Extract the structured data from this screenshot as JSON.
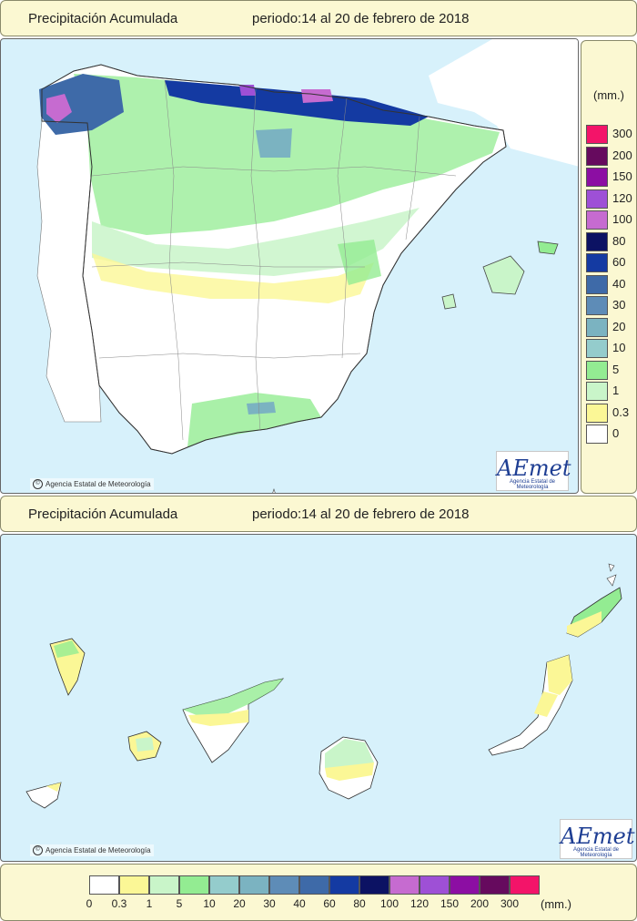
{
  "header_top": {
    "title": "Precipitación Acumulada",
    "period": "periodo:14 al 20 de febrero de 2018"
  },
  "header_bottom": {
    "title": "Precipitación Acumulada",
    "period": "periodo:14 al 20 de febrero de 2018"
  },
  "map_peninsula": {
    "credit": "Agencia Estatal de Meteorología",
    "logo_text": "AEmet",
    "logo_subtext": "Agencia Estatal de Meteorología"
  },
  "map_canarias": {
    "credit": "Agencia Estatal de Meteorología",
    "logo_text": "AEmet",
    "logo_subtext": "Agencia Estatal de Meteorología"
  },
  "legend": {
    "unit": "(mm.)",
    "classes": [
      {
        "label": "0",
        "color": "#ffffff"
      },
      {
        "label": "0.3",
        "color": "#fbf796"
      },
      {
        "label": "1",
        "color": "#c9f5c9"
      },
      {
        "label": "5",
        "color": "#93ec92"
      },
      {
        "label": "10",
        "color": "#94cccc"
      },
      {
        "label": "20",
        "color": "#7bb3c1"
      },
      {
        "label": "30",
        "color": "#5e8cb7"
      },
      {
        "label": "40",
        "color": "#3e6aa8"
      },
      {
        "label": "60",
        "color": "#143aa2"
      },
      {
        "label": "80",
        "color": "#0c1263"
      },
      {
        "label": "100",
        "color": "#c66bd0"
      },
      {
        "label": "120",
        "color": "#9e50d6"
      },
      {
        "label": "150",
        "color": "#8c0ea3"
      },
      {
        "label": "200",
        "color": "#660a5e"
      },
      {
        "label": "300",
        "color": "#f31469"
      }
    ]
  }
}
